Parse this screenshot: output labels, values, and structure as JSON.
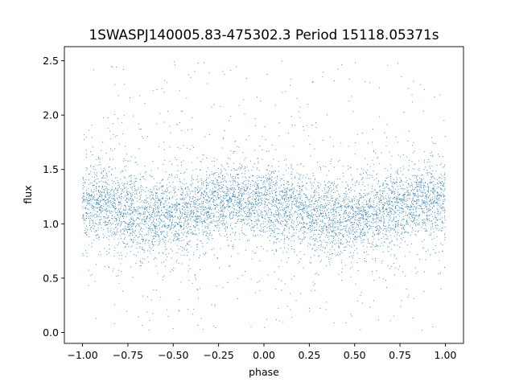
{
  "chart_data": {
    "type": "scatter",
    "title": "1SWASPJ140005.83-475302.3 Period 15118.05371s",
    "xlabel": "phase",
    "ylabel": "flux",
    "xlim": [
      -1.1,
      1.1
    ],
    "ylim": [
      -0.1,
      2.63
    ],
    "xticks": [
      -1.0,
      -0.75,
      -0.5,
      -0.25,
      0.0,
      0.25,
      0.5,
      0.75,
      1.0
    ],
    "xtick_labels": [
      "−1.00",
      "−0.75",
      "−0.50",
      "−0.25",
      "0.00",
      "0.25",
      "0.50",
      "0.75",
      "1.00"
    ],
    "yticks": [
      0.0,
      0.5,
      1.0,
      1.5,
      2.0,
      2.5
    ],
    "ytick_labels": [
      "0.0",
      "0.5",
      "1.0",
      "1.5",
      "2.0",
      "2.5"
    ],
    "grid": false,
    "legend": "none",
    "marker_color": "#1f77b4",
    "series": [
      {
        "x": [
          -1.0,
          -0.875,
          -0.75,
          -0.625,
          -0.5,
          -0.375,
          -0.25,
          -0.125,
          0.0,
          0.125,
          0.25,
          0.375,
          0.5,
          0.625,
          0.75,
          0.875,
          1.0
        ],
        "y": [
          1.2,
          1.17,
          1.11,
          1.07,
          1.06,
          1.13,
          1.2,
          1.22,
          1.2,
          1.16,
          1.1,
          1.06,
          1.06,
          1.11,
          1.18,
          1.22,
          1.22
        ],
        "spread_core": 0.17,
        "range_min": 0.0,
        "range_max": 2.5
      }
    ]
  }
}
